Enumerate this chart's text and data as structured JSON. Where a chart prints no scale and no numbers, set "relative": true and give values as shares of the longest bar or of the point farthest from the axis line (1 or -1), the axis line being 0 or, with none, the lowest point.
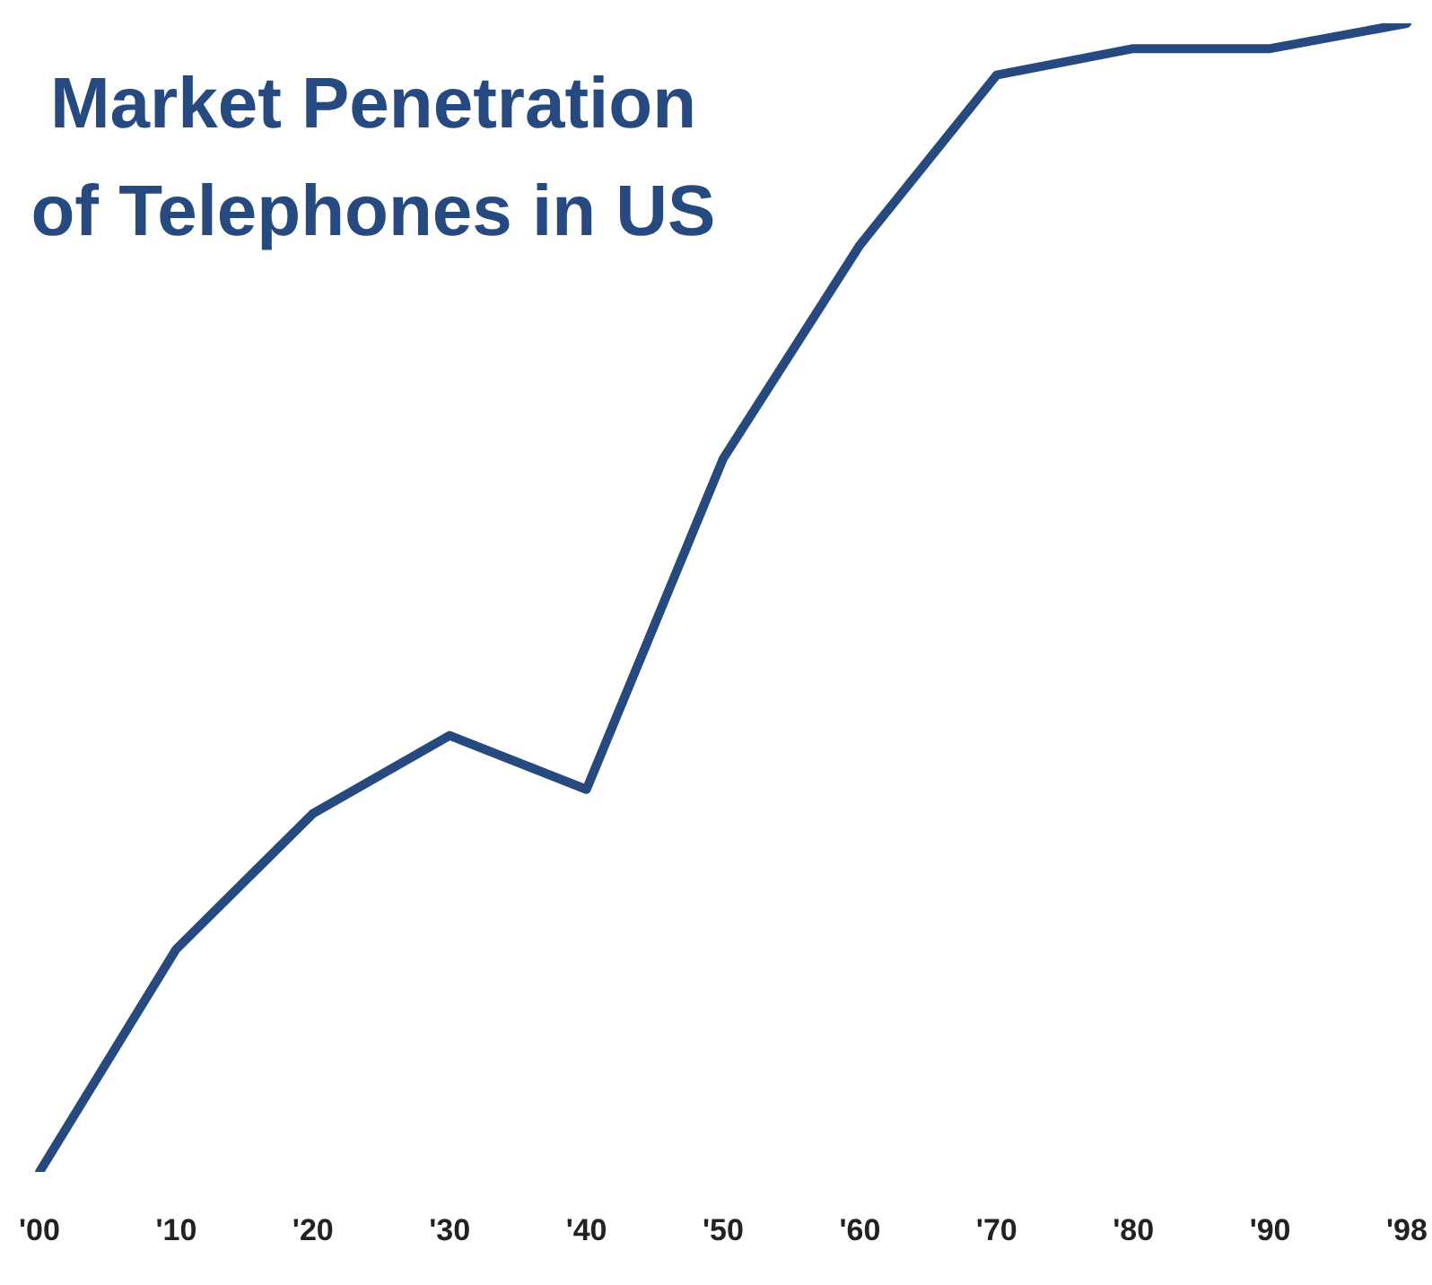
{
  "chart_data": {
    "type": "line",
    "title": "Market Penetration of Telephones in US",
    "relative": true,
    "categories": [
      "'00",
      "'10",
      "'20",
      "'30",
      "'40",
      "'50",
      "'60",
      "'70",
      "'80",
      "'90",
      "'98"
    ],
    "series": [
      {
        "color": "#264a7f",
        "values": [
          0,
          0.194,
          0.312,
          0.38,
          0.333,
          0.621,
          0.807,
          0.955,
          0.978,
          0.978,
          1
        ]
      }
    ],
    "grid": false,
    "legend": false,
    "marker": "none",
    "line_style": "solid"
  }
}
